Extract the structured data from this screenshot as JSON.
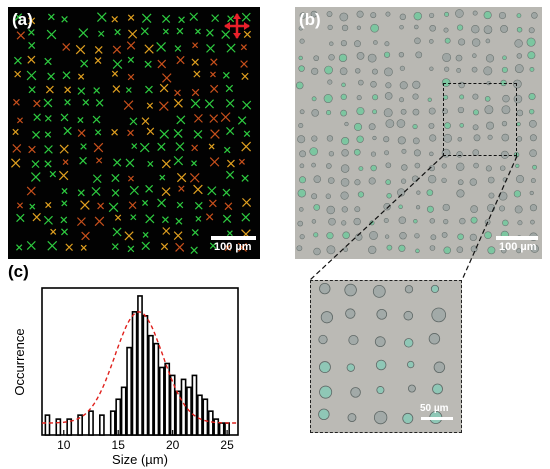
{
  "panels": {
    "a": {
      "label": "(a)",
      "scale_bar": "100 µm"
    },
    "b": {
      "label": "(b)",
      "scale_bar": "100 µm"
    },
    "zoom": {
      "scale_bar": "50 µm"
    },
    "c": {
      "label": "(c)"
    }
  },
  "colors": {
    "bars": "#000000",
    "fit": "#e0201c",
    "crosshair": "#e8202a",
    "dot_green": "#2ecc40",
    "dot_orange": "#e0a020"
  },
  "chart_data": {
    "type": "bar",
    "title": "",
    "xlabel": "Size (µm)",
    "ylabel": "Occurrence",
    "xlim": [
      8,
      26
    ],
    "ylim": [
      0,
      37
    ],
    "xticks": [
      10,
      15,
      20,
      25
    ],
    "x": [
      8.5,
      9.5,
      10.5,
      11.5,
      12.5,
      13.5,
      14.5,
      15,
      15.5,
      16,
      16.5,
      17,
      17.5,
      18,
      18.5,
      19,
      19.5,
      20,
      20.5,
      21,
      21.5,
      22,
      22.5,
      23,
      23.5,
      24,
      24.5,
      25
    ],
    "values": [
      5,
      4,
      4,
      5,
      6,
      5,
      6,
      9,
      12,
      22,
      31,
      35,
      30,
      25,
      23,
      17,
      18,
      15,
      11,
      14,
      12,
      15,
      10,
      9,
      6,
      4,
      3,
      3
    ],
    "fit": {
      "type": "gaussian",
      "amplitude": 28,
      "center": 16.9,
      "sigma": 2.2,
      "baseline": 3
    }
  }
}
